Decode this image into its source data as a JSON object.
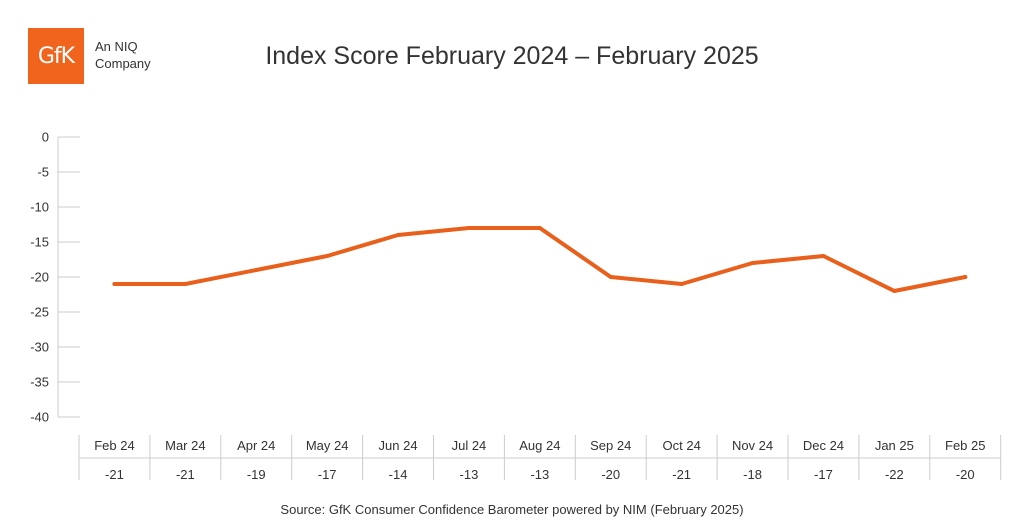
{
  "logo": {
    "text": "GfK",
    "tagline": "An NIQ Company"
  },
  "source": "Source: GfK Consumer Confidence Barometer powered by NIM (February 2025)",
  "colors": {
    "brand": "#f0641e",
    "line": "#e8601c",
    "grid": "#cccccc"
  },
  "chart_data": {
    "type": "line",
    "title": "Index Score February 2024 – February 2025",
    "xlabel": "",
    "ylabel": "",
    "ylim": [
      -40,
      0
    ],
    "yticks": [
      0,
      -5,
      -10,
      -15,
      -20,
      -25,
      -30,
      -35,
      -40
    ],
    "grid": false,
    "categories": [
      "Feb 24",
      "Mar 24",
      "Apr 24",
      "May 24",
      "Jun 24",
      "Jul 24",
      "Aug 24",
      "Sep 24",
      "Oct 24",
      "Nov 24",
      "Dec 24",
      "Jan 25",
      "Feb 25"
    ],
    "values": [
      -21,
      -21,
      -19,
      -17,
      -14,
      -13,
      -13,
      -20,
      -21,
      -18,
      -17,
      -22,
      -20
    ],
    "value_labels": [
      "-21",
      "-21",
      "-19",
      "-17",
      "-14",
      "-13",
      "-13",
      "-20",
      "-21",
      "-18",
      "-17",
      "-22",
      "-20"
    ]
  }
}
